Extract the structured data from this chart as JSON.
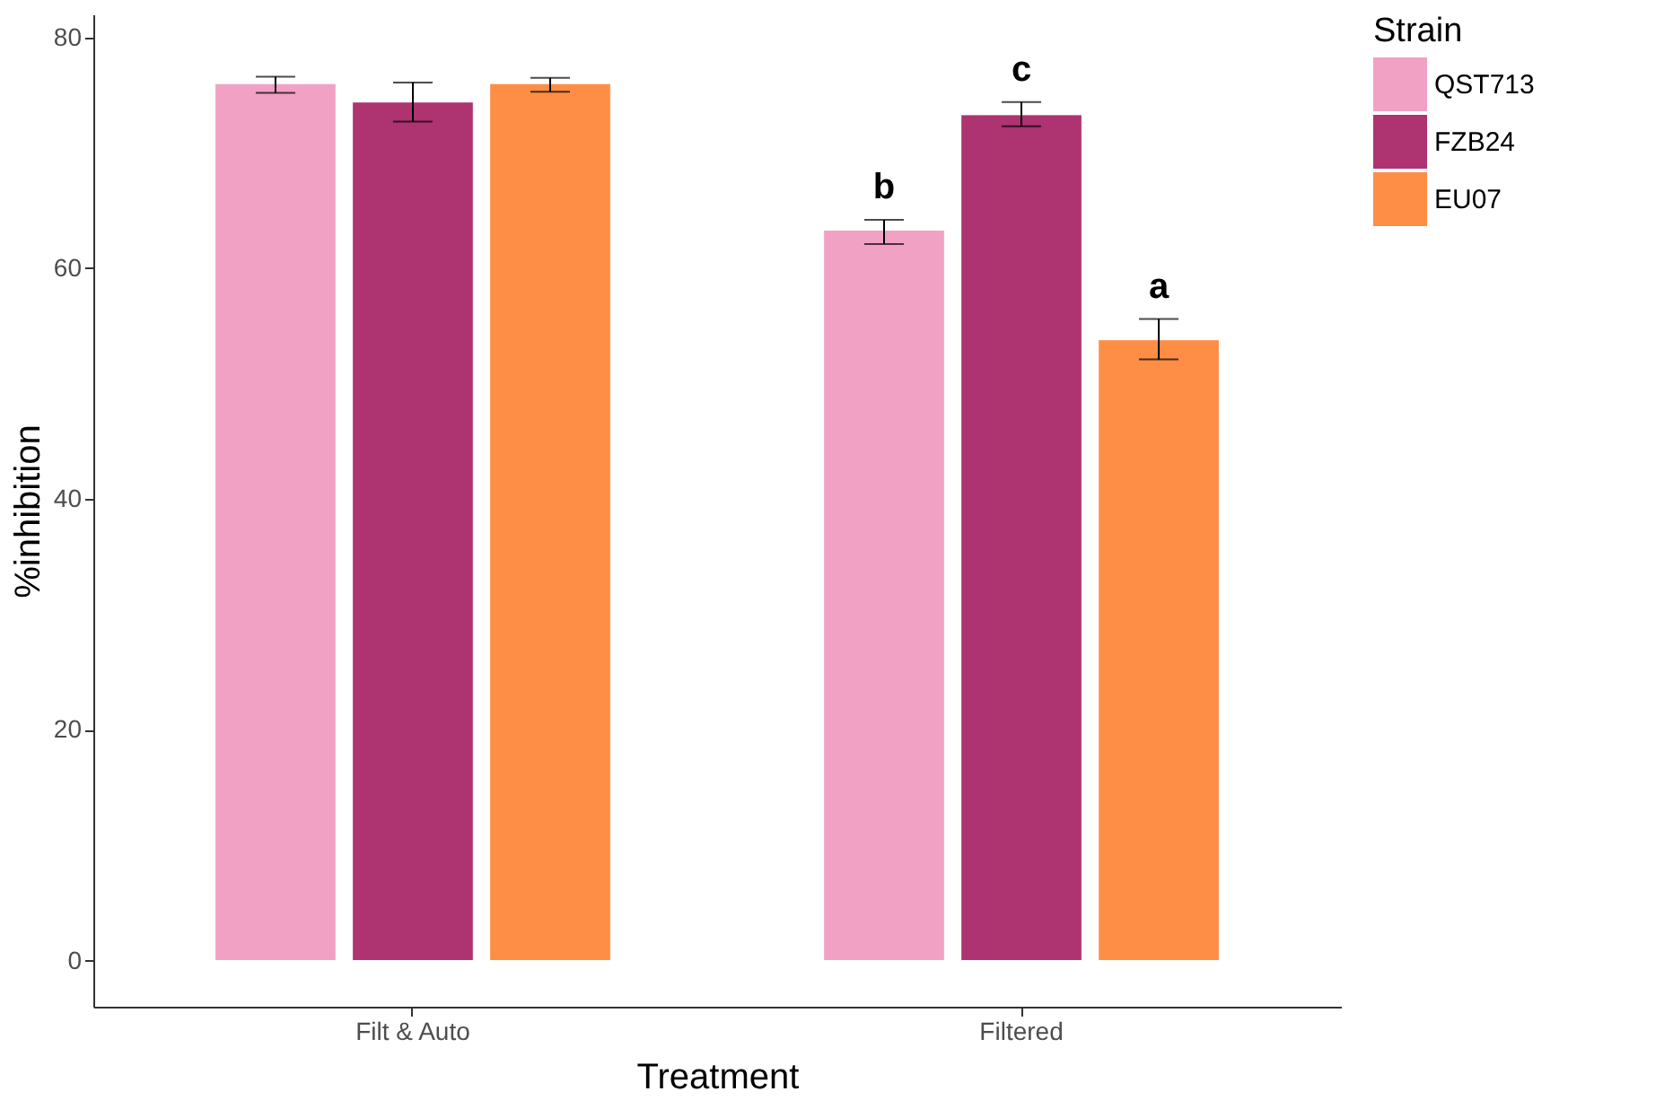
{
  "chart_data": {
    "type": "bar",
    "xlabel": "Treatment",
    "ylabel": "%inhibition",
    "legend_title": "Strain",
    "legend": "right",
    "categories": [
      "Filt & Auto",
      "Filtered"
    ],
    "series": [
      {
        "name": "QST713",
        "color": "#f0a1c4",
        "values": [
          76.0,
          63.3
        ],
        "errors": [
          [
            75.2,
            76.6
          ],
          [
            62.1,
            64.2
          ]
        ]
      },
      {
        "name": "FZB24",
        "color": "#ad3371",
        "values": [
          74.4,
          73.3
        ],
        "errors": [
          [
            72.7,
            76.1
          ],
          [
            72.3,
            74.4
          ]
        ]
      },
      {
        "name": "EU07",
        "color": "#fe8d45",
        "values": [
          76.0,
          53.8
        ],
        "errors": [
          [
            75.3,
            76.5
          ],
          [
            52.1,
            55.6
          ]
        ]
      }
    ],
    "ylim": [
      -4,
      82
    ],
    "yticks": [
      0,
      20,
      40,
      60,
      80
    ],
    "grid": false,
    "annotations": [
      "b",
      "c",
      "a"
    ]
  }
}
